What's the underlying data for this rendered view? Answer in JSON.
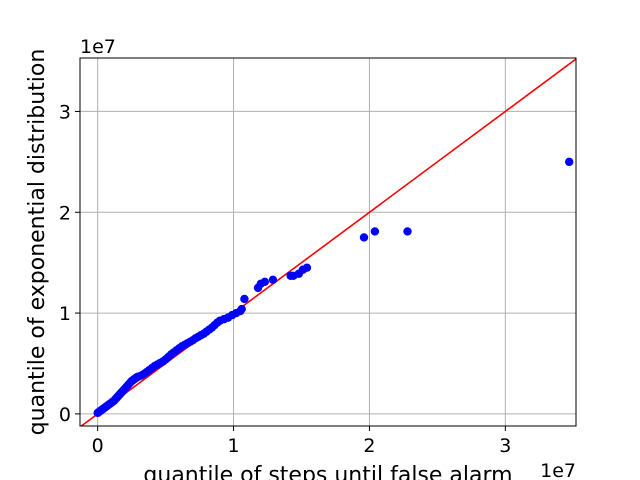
{
  "chart_data": {
    "type": "scatter",
    "title": "",
    "xlabel": "quantile of steps until false alarm",
    "ylabel": "quantile of exponential distribution",
    "x_offset_label": "1e7",
    "y_offset_label": "1e7",
    "xlim": [
      -1300000.0,
      35200000.0
    ],
    "ylim": [
      -1200000.0,
      35300000.0
    ],
    "xticks": [
      0,
      10000000,
      20000000,
      30000000
    ],
    "xtick_labels": [
      "0",
      "1",
      "2",
      "3"
    ],
    "yticks": [
      0,
      10000000,
      20000000,
      30000000
    ],
    "ytick_labels": [
      "0",
      "1",
      "2",
      "3"
    ],
    "grid": true,
    "colors": {
      "points": "#0000ff",
      "reference_line": "#ff0000",
      "grid": "#b0b0b0"
    },
    "reference_line": {
      "from": [
        -1300000.0,
        -1300000.0
      ],
      "to": [
        35300000.0,
        35300000.0
      ]
    },
    "series": [
      {
        "x": [
          0,
          100000,
          200000,
          300000,
          400000,
          500000,
          600000,
          700000,
          800000,
          900000,
          1000000,
          1100000,
          1200000,
          1300000,
          1400000,
          1500000,
          1600000,
          1700000,
          1800000,
          1900000,
          2000000,
          2100000,
          2200000,
          2300000,
          2400000,
          2500000,
          2600000,
          2700000,
          2800000,
          2900000,
          3000000,
          3200000,
          3400000,
          3600000,
          3800000,
          4000000,
          4200000,
          4400000,
          4600000,
          4800000,
          5000000,
          5200000,
          5400000,
          5600000,
          5800000,
          6000000,
          6200000,
          6400000,
          6600000,
          6800000,
          7000000,
          7200000,
          7400000,
          7600000,
          7800000,
          8000000,
          8200000,
          8400000,
          8600000,
          8800000,
          9000000,
          9300000,
          9600000,
          9900000,
          10200000,
          10500000,
          10600000,
          10800000,
          11800000,
          12000000,
          12300000,
          12900000,
          14200000,
          14400000,
          14800000,
          15100000,
          15400000,
          19600000,
          20400000,
          22800000,
          34700000
        ],
        "y": [
          100000,
          200000,
          300000,
          400000,
          500000,
          600000,
          700000,
          800000,
          900000,
          1000000,
          1100000,
          1200000,
          1300000,
          1450000,
          1600000,
          1750000,
          1900000,
          2050000,
          2200000,
          2350000,
          2500000,
          2650000,
          2800000,
          2950000,
          3100000,
          3250000,
          3350000,
          3450000,
          3550000,
          3650000,
          3700000,
          3800000,
          3950000,
          4150000,
          4350000,
          4550000,
          4750000,
          4900000,
          5050000,
          5200000,
          5400000,
          5650000,
          5900000,
          6100000,
          6300000,
          6500000,
          6700000,
          6850000,
          7000000,
          7150000,
          7300000,
          7500000,
          7650000,
          7800000,
          7950000,
          8150000,
          8350000,
          8550000,
          8800000,
          9050000,
          9250000,
          9400000,
          9550000,
          9800000,
          10000000,
          10200000,
          10400000,
          11400000,
          12500000,
          12900000,
          13100000,
          13300000,
          13700000,
          13700000,
          13900000,
          14300000,
          14500000,
          17500000,
          18100000,
          18100000,
          25000000
        ]
      }
    ]
  }
}
